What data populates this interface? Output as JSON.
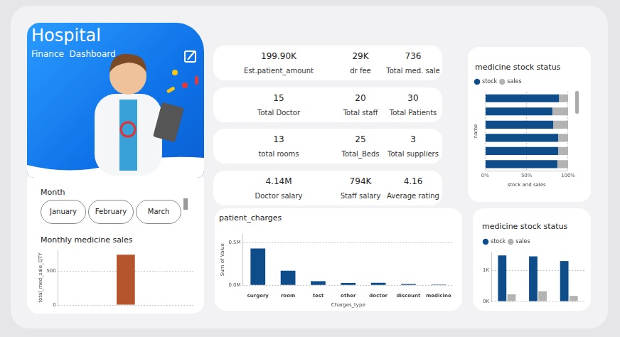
{
  "header": {
    "title": "Hospital",
    "subtitle": "Finance  Dashboard"
  },
  "kpi_rows": [
    [
      {
        "value": "199.90K",
        "label": "Est.patient_amount"
      },
      {
        "value": "29K",
        "label": "dr fee"
      },
      {
        "value": "736",
        "label": "Total med. sale"
      }
    ],
    [
      {
        "value": "15",
        "label": "Total Doctor"
      },
      {
        "value": "20",
        "label": "Total staff"
      },
      {
        "value": "30",
        "label": "Total Patients"
      }
    ],
    [
      {
        "value": "13",
        "label": "total rooms"
      },
      {
        "value": "25",
        "label": "Total_Beds"
      },
      {
        "value": "3",
        "label": "Total suppliers"
      }
    ],
    [
      {
        "value": "4.14M",
        "label": "Doctor salary"
      },
      {
        "value": "794K",
        "label": "Staff salary"
      },
      {
        "value": "4.16",
        "label": "Average rating"
      }
    ]
  ],
  "slicer": {
    "title": "Month",
    "options": [
      "January",
      "February",
      "March"
    ]
  },
  "chart_data": [
    {
      "type": "bar",
      "title": "Monthly medicine sales",
      "ylabel": "total_med_sale_QTY",
      "categories": [
        null
      ],
      "values": [
        736
      ],
      "color": "#b5552d",
      "ylim": [
        0,
        800
      ],
      "yticks": [
        0,
        500
      ],
      "grid": true,
      "tick_labels": "y"
    },
    {
      "type": "bar",
      "title": "patient_charges",
      "xlabel": "Charges_type",
      "ylabel": "Sum of Value",
      "categories": [
        "surgery",
        "room",
        "test",
        "other",
        "doctor",
        "discount",
        "medicine"
      ],
      "values": [
        431000,
        171000,
        48000,
        27000,
        29000,
        14000,
        7000
      ],
      "color": "#0e4c8a",
      "ylim": [
        0,
        600000
      ],
      "yticks": [
        {
          "value": 0,
          "label": "0.0M"
        },
        {
          "value": 500000,
          "label": "0.5M"
        }
      ],
      "grid": true
    },
    {
      "type": "bar",
      "title": "medicine stock status",
      "orientation": "horizontal",
      "stacked": true,
      "xlabel": "stock and sales",
      "ylabel": "name",
      "categories": [
        null,
        null,
        null,
        null,
        null,
        null
      ],
      "series": [
        {
          "name": "stock",
          "color": "#0e4c8a",
          "values": [
            89,
            81,
            82,
            88,
            88,
            87
          ]
        },
        {
          "name": "sales",
          "color": "#b3b3b3",
          "values": [
            11,
            19,
            18,
            12,
            12,
            13
          ]
        }
      ],
      "xlim": [
        0,
        100
      ],
      "xticks": [
        {
          "value": 0,
          "label": "0%"
        },
        {
          "value": 50,
          "label": "50%"
        },
        {
          "value": 100,
          "label": "100%"
        }
      ],
      "grid": true,
      "legend": "top left",
      "tick_labels": "x"
    },
    {
      "type": "bar",
      "title": "medicine stock status",
      "categories": [
        null,
        null,
        null
      ],
      "series": [
        {
          "name": "stock",
          "color": "#0e4c8a",
          "values": [
            1480,
            1450,
            1300
          ]
        },
        {
          "name": "sales",
          "color": "#b3b3b3",
          "values": [
            230,
            330,
            180
          ]
        }
      ],
      "ylim": [
        0,
        1600
      ],
      "yticks": [
        {
          "value": 0,
          "label": "0K"
        },
        {
          "value": 1000,
          "label": "1K"
        }
      ],
      "grid": true,
      "legend": "top left",
      "tick_labels": "y"
    }
  ]
}
